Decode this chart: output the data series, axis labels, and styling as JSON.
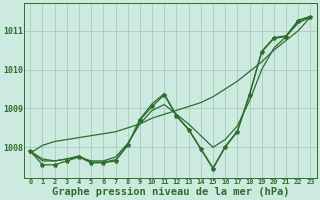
{
  "background_color": "#cceae0",
  "grid_color": "#aaccbb",
  "line_color": "#2d6e2d",
  "xlabel": "Graphe pression niveau de la mer (hPa)",
  "xlabel_fontsize": 7.5,
  "yticks": [
    1008,
    1009,
    1010,
    1011
  ],
  "xtick_labels": [
    "0",
    "1",
    "2",
    "3",
    "4",
    "5",
    "6",
    "7",
    "8",
    "9",
    "10",
    "11",
    "12",
    "13",
    "14",
    "15",
    "16",
    "17",
    "18",
    "19",
    "20",
    "21",
    "22",
    "23"
  ],
  "ylim": [
    1007.2,
    1011.7
  ],
  "xlim": [
    -0.5,
    23.5
  ],
  "series_main": [
    1007.9,
    1007.55,
    1007.55,
    1007.65,
    1007.75,
    1007.6,
    1007.6,
    1007.65,
    1008.05,
    1008.7,
    1009.05,
    1009.35,
    1008.8,
    1008.45,
    1007.95,
    1007.45,
    1008.0,
    1008.4,
    1009.35,
    1010.45,
    1010.8,
    1010.85,
    1011.25,
    1011.35
  ],
  "series_smooth": [
    1007.9,
    1007.7,
    1007.65,
    1007.7,
    1007.75,
    1007.65,
    1007.65,
    1007.75,
    1008.1,
    1008.6,
    1008.95,
    1009.1,
    1008.85,
    1008.6,
    1008.3,
    1008.0,
    1008.2,
    1008.55,
    1009.2,
    1010.0,
    1010.55,
    1010.85,
    1011.2,
    1011.35
  ],
  "series_trend": [
    1007.85,
    1008.05,
    1008.15,
    1008.2,
    1008.25,
    1008.3,
    1008.35,
    1008.4,
    1008.5,
    1008.6,
    1008.75,
    1008.85,
    1008.95,
    1009.05,
    1009.15,
    1009.3,
    1009.5,
    1009.7,
    1009.95,
    1010.2,
    1010.5,
    1010.75,
    1011.0,
    1011.35
  ],
  "series_extra": [
    1007.9,
    1007.65,
    1007.65,
    1007.7,
    1007.78,
    1007.62,
    1007.62,
    1007.68,
    1008.07,
    1008.72,
    1009.12,
    1009.38,
    1008.82,
    1008.47,
    1007.97,
    1007.47,
    1008.02,
    1008.42,
    1009.37,
    1010.47,
    1010.82,
    1010.87,
    1011.27,
    1011.37
  ]
}
